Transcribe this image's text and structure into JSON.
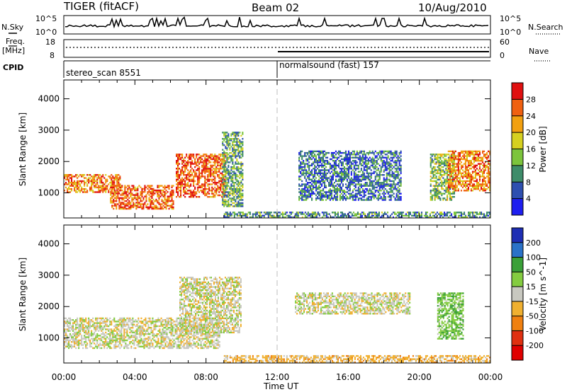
{
  "header": {
    "title": "TIGER (fitACF)",
    "beam": "Beam 02",
    "date": "10/Aug/2010"
  },
  "status_panels": {
    "nsky": {
      "label": "N.Sky",
      "ticks": [
        "10^5",
        "10^0"
      ],
      "right_label": "N.Search",
      "right_ticks": [
        "10^5",
        "10^0"
      ]
    },
    "freq": {
      "label_top": "Freq.",
      "label_bottom": "[MHz]",
      "ticks": [
        "18",
        "8"
      ],
      "right_label": "Nave",
      "right_ticks": [
        "60",
        "0"
      ]
    },
    "cpid": {
      "label": "CPID",
      "segments": [
        {
          "name": "stereo_scan 8551",
          "start_hour": 0
        },
        {
          "name": "normalsound (fast) 157",
          "start_hour": 12
        }
      ]
    }
  },
  "chart_data": [
    {
      "type": "heatmap",
      "name": "Power",
      "xlabel": "",
      "ylabel": "Slant Range [km]",
      "xlim": [
        0,
        24
      ],
      "ylim": [
        200,
        4600
      ],
      "yticks": [
        "1000",
        "2000",
        "3000",
        "4000"
      ],
      "colorbar_label": "Power [dB]",
      "colorbar_ticks": [
        "4",
        "8",
        "12",
        "16",
        "20",
        "24",
        "28"
      ],
      "colorbar_range": [
        0,
        32
      ],
      "colors": [
        "#1e1ef0",
        "#2e4fb0",
        "#3e8c6a",
        "#7cc43c",
        "#d6d020",
        "#f2a010",
        "#f06010",
        "#e01010"
      ],
      "echo_regions": [
        {
          "t0": 0.0,
          "t1": 3.2,
          "r0": 1050,
          "r1": 1650,
          "level": 24
        },
        {
          "t0": 2.6,
          "t1": 6.2,
          "r0": 520,
          "r1": 1300,
          "level": 26
        },
        {
          "t0": 6.3,
          "t1": 9.1,
          "r0": 900,
          "r1": 2300,
          "level": 26
        },
        {
          "t0": 8.9,
          "t1": 10.1,
          "r0": 600,
          "r1": 3000,
          "level": 12
        },
        {
          "t0": 13.2,
          "t1": 19.0,
          "r0": 800,
          "r1": 2400,
          "level": 8
        },
        {
          "t0": 20.6,
          "t1": 22.0,
          "r0": 800,
          "r1": 2300,
          "level": 14
        },
        {
          "t0": 21.6,
          "t1": 24.0,
          "r0": 1100,
          "r1": 2400,
          "level": 24
        },
        {
          "t0": 9.0,
          "t1": 24.0,
          "r0": 250,
          "r1": 450,
          "level": 10
        }
      ]
    },
    {
      "type": "heatmap",
      "name": "Velocity",
      "xlabel": "Time UT",
      "ylabel": "Slant Range [km]",
      "xlim": [
        0,
        24
      ],
      "ylim": [
        200,
        4600
      ],
      "xticks": [
        "00:00",
        "04:00",
        "08:00",
        "12:00",
        "16:00",
        "20:00",
        "00:00"
      ],
      "yticks": [
        "1000",
        "2000",
        "3000",
        "4000"
      ],
      "colorbar_label": "Velocity [m s^-1]",
      "colorbar_ticks": [
        "200",
        "100",
        "50",
        "15",
        "-15",
        "-50",
        "-100",
        "-200"
      ],
      "colors": [
        "#1e2eb4",
        "#2a72c8",
        "#3aa038",
        "#84cc40",
        "#c8c8c0",
        "#f0b030",
        "#f08010",
        "#e03010",
        "#e00000"
      ],
      "echo_regions": [
        {
          "t0": 0.0,
          "t1": 8.8,
          "r0": 700,
          "r1": 1700,
          "level": 0
        },
        {
          "t0": 6.5,
          "t1": 10.0,
          "r0": 1200,
          "r1": 3000,
          "level": 0
        },
        {
          "t0": 13.0,
          "t1": 19.5,
          "r0": 1800,
          "r1": 2500,
          "level": 0
        },
        {
          "t0": 21.0,
          "t1": 22.5,
          "r0": 1000,
          "r1": 2500,
          "level": 40
        },
        {
          "t0": 9.0,
          "t1": 24.0,
          "r0": 250,
          "r1": 500,
          "level": -30
        }
      ]
    }
  ]
}
